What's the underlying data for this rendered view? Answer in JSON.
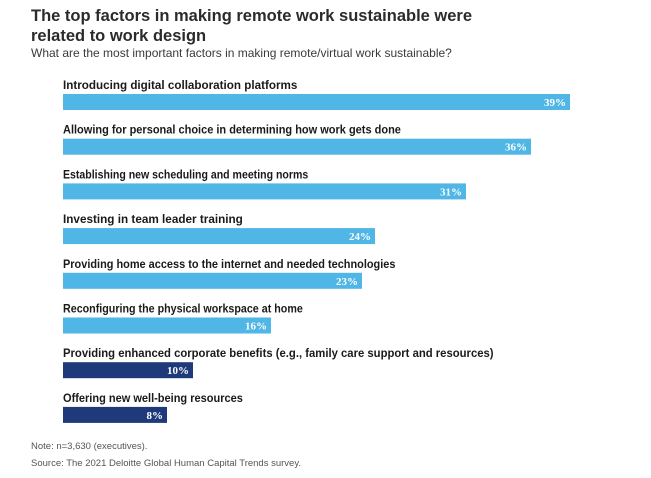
{
  "title": "The top factors in making remote work sustainable were related to work design",
  "subtitle": "What are the most important factors in making remote/virtual work sustainable?",
  "colors": {
    "light_bar": "#4fb6e6",
    "dark_bar": "#1f3a7a",
    "label_text": "#1a1a1a",
    "value_text": "#ffffff"
  },
  "chart_data": {
    "type": "bar",
    "orientation": "horizontal",
    "title": "The top factors in making remote work sustainable were related to work design",
    "subtitle": "What are the most important factors in making remote/virtual work sustainable?",
    "xlim": [
      0,
      39
    ],
    "grid": false,
    "categories": [
      "Introducing digital collaboration platforms",
      "Allowing for personal choice in determining how work gets done",
      "Establishing new scheduling and meeting norms",
      "Investing in team leader training",
      "Providing home access to the internet and needed technologies",
      "Reconfiguring the physical workspace at home",
      "Providing enhanced corporate benefits (e.g., family care support and resources)",
      "Offering new well-being resources"
    ],
    "values": [
      39,
      36,
      31,
      24,
      23,
      16,
      10,
      8
    ],
    "value_labels": [
      "39%",
      "36%",
      "31%",
      "24%",
      "23%",
      "16%",
      "10%",
      "8%"
    ],
    "bar_colors": [
      "#4fb6e6",
      "#4fb6e6",
      "#4fb6e6",
      "#4fb6e6",
      "#4fb6e6",
      "#4fb6e6",
      "#1f3a7a",
      "#1f3a7a"
    ]
  },
  "notes": {
    "note": "Note: n=3,630 (executives).",
    "source": "Source: The 2021 Deloitte Global Human Capital Trends survey."
  }
}
